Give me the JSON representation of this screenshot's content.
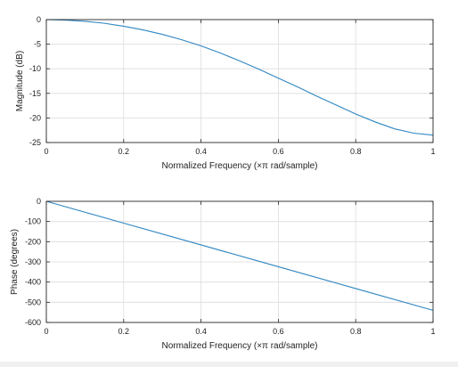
{
  "chart_data": [
    {
      "type": "line",
      "title": "",
      "xlabel": "Normalized Frequency (×π rad/sample)",
      "ylabel": "Magnitude (dB)",
      "xlim": [
        0,
        1
      ],
      "ylim": [
        -25,
        0
      ],
      "xticks": [
        0,
        0.2,
        0.4,
        0.6,
        0.8,
        1
      ],
      "yticks": [
        -25,
        -20,
        -15,
        -10,
        -5,
        0
      ],
      "xtick_labels": [
        "0",
        "0.2",
        "0.4",
        "0.6",
        "0.8",
        "1"
      ],
      "ytick_labels": [
        "-25",
        "-20",
        "-15",
        "-10",
        "-5",
        "0"
      ],
      "grid": true,
      "series": [
        {
          "color": "#2e86c1",
          "x": [
            0,
            0.05,
            0.1,
            0.15,
            0.2,
            0.25,
            0.3,
            0.35,
            0.4,
            0.45,
            0.5,
            0.55,
            0.6,
            0.65,
            0.7,
            0.75,
            0.8,
            0.85,
            0.9,
            0.95,
            1.0
          ],
          "y": [
            0,
            -0.1,
            -0.35,
            -0.75,
            -1.35,
            -2.1,
            -3.0,
            -4.1,
            -5.35,
            -6.8,
            -8.4,
            -10.1,
            -11.9,
            -13.7,
            -15.6,
            -17.4,
            -19.2,
            -20.8,
            -22.2,
            -23.1,
            -23.5
          ]
        }
      ]
    },
    {
      "type": "line",
      "title": "",
      "xlabel": "Normalized Frequency (×π rad/sample)",
      "ylabel": "Phase (degrees)",
      "xlim": [
        0,
        1
      ],
      "ylim": [
        -600,
        0
      ],
      "xticks": [
        0,
        0.2,
        0.4,
        0.6,
        0.8,
        1
      ],
      "yticks": [
        -600,
        -500,
        -400,
        -300,
        -200,
        -100,
        0
      ],
      "xtick_labels": [
        "0",
        "0.2",
        "0.4",
        "0.6",
        "0.8",
        "1"
      ],
      "ytick_labels": [
        "-600",
        "-500",
        "-400",
        "-300",
        "-200",
        "-100",
        "0"
      ],
      "grid": true,
      "series": [
        {
          "color": "#2e86c1",
          "x": [
            0,
            0.2,
            0.4,
            0.6,
            0.8,
            1.0
          ],
          "y": [
            0,
            -108,
            -216,
            -324,
            -432,
            -540
          ]
        }
      ]
    }
  ]
}
